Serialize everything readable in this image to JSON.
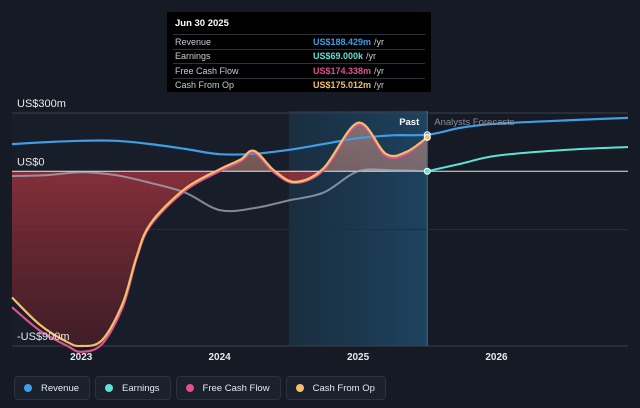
{
  "chart_data": {
    "type": "area",
    "y_axis_labels": {
      "top": "US$300m",
      "zero": "US$0",
      "bottom": "-US$900m"
    },
    "ylim": [
      -900,
      300
    ],
    "xlim": [
      2022.5,
      2026.95
    ],
    "x_ticks": [
      {
        "value": 2023,
        "label": "2023"
      },
      {
        "value": 2024,
        "label": "2024"
      },
      {
        "value": 2025,
        "label": "2025"
      },
      {
        "value": 2026,
        "label": "2026"
      }
    ],
    "past_label": "Past",
    "forecast_label": "Analysts Forecasts",
    "past_end": 2025.5,
    "highlight_start": 2024.5,
    "series": [
      {
        "name": "Revenue",
        "color": "#3e9ee8",
        "x": [
          2022.5,
          2022.75,
          2023.0,
          2023.25,
          2023.5,
          2023.75,
          2024.0,
          2024.25,
          2024.5,
          2024.75,
          2025.0,
          2025.25,
          2025.5,
          2025.75,
          2026.0,
          2026.5,
          2026.95
        ],
        "values": [
          140,
          150,
          157,
          157,
          140,
          115,
          88,
          90,
          110,
          140,
          170,
          185,
          188,
          225,
          245,
          262,
          275
        ]
      },
      {
        "name": "Earnings",
        "color": "#5ce3d6",
        "x": [
          2022.5,
          2022.75,
          2023.0,
          2023.25,
          2023.5,
          2023.75,
          2024.0,
          2024.25,
          2024.5,
          2024.75,
          2025.0,
          2025.25,
          2025.5,
          2025.75,
          2026.0,
          2026.5,
          2026.95
        ],
        "values": [
          -25,
          -20,
          -5,
          -20,
          -60,
          -110,
          -200,
          -190,
          -150,
          -110,
          0,
          5,
          0.069,
          40,
          80,
          110,
          125
        ]
      },
      {
        "name": "Free Cash Flow",
        "color": "#e0508e",
        "x": [
          2022.5,
          2022.7,
          2022.9,
          2023.0,
          2023.15,
          2023.3,
          2023.4,
          2023.5,
          2023.75,
          2024.0,
          2024.15,
          2024.25,
          2024.4,
          2024.55,
          2024.75,
          2025.0,
          2025.2,
          2025.35,
          2025.5
        ],
        "values": [
          -700,
          -820,
          -900,
          -930,
          -890,
          -700,
          -450,
          -280,
          -100,
          0,
          50,
          95,
          -10,
          -60,
          5,
          240,
          80,
          90,
          174.338
        ]
      },
      {
        "name": "Cash From Op",
        "color": "#f3c06a",
        "x": [
          2022.5,
          2022.7,
          2022.9,
          2023.0,
          2023.15,
          2023.3,
          2023.4,
          2023.5,
          2023.75,
          2024.0,
          2024.15,
          2024.25,
          2024.4,
          2024.55,
          2024.75,
          2025.0,
          2025.2,
          2025.35,
          2025.5
        ],
        "values": [
          -650,
          -790,
          -880,
          -900,
          -870,
          -680,
          -440,
          -270,
          -90,
          10,
          60,
          105,
          0,
          -55,
          15,
          250,
          90,
          100,
          175.012
        ]
      }
    ]
  },
  "tooltip": {
    "date": "Jun 30 2025",
    "rows": [
      {
        "label": "Revenue",
        "value": "US$188.429m",
        "unit": "/yr",
        "color": "#3e9ee8"
      },
      {
        "label": "Earnings",
        "value": "US$69.000k",
        "unit": "/yr",
        "color": "#5ce3d6"
      },
      {
        "label": "Free Cash Flow",
        "value": "US$174.338m",
        "unit": "/yr",
        "color": "#e0508e"
      },
      {
        "label": "Cash From Op",
        "value": "US$175.012m",
        "unit": "/yr",
        "color": "#f3c06a"
      }
    ]
  },
  "legend": [
    {
      "label": "Revenue",
      "color": "#3e9ee8"
    },
    {
      "label": "Earnings",
      "color": "#5ce3d6"
    },
    {
      "label": "Free Cash Flow",
      "color": "#e0508e"
    },
    {
      "label": "Cash From Op",
      "color": "#f3c06a"
    }
  ]
}
